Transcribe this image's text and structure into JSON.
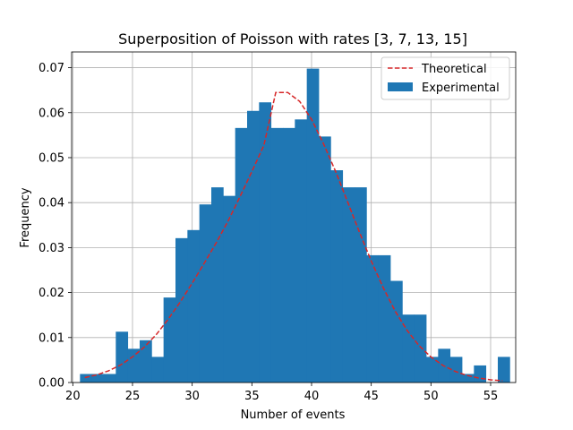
{
  "chart_data": {
    "type": "bar",
    "title": "Superposition of Poisson with rates [3, 7, 13, 15]",
    "xlabel": "Number of events",
    "ylabel": "Frequency",
    "xlim": [
      19.9,
      57.1
    ],
    "ylim": [
      0,
      0.0735
    ],
    "xticks": [
      20,
      25,
      30,
      35,
      40,
      45,
      50,
      55
    ],
    "yticks": [
      0.0,
      0.01,
      0.02,
      0.03,
      0.04,
      0.05,
      0.06,
      0.07
    ],
    "ytick_labels": [
      "0.00",
      "0.01",
      "0.02",
      "0.03",
      "0.04",
      "0.05",
      "0.06",
      "0.07"
    ],
    "grid": true,
    "legend_position": "top-right",
    "bar_color": "#1f77b4",
    "line_color": "#d62728",
    "series": [
      {
        "name": "Experimental",
        "kind": "histogram",
        "bin_start": 20.6,
        "bin_width": 1.0,
        "values": [
          0.0019,
          0.0019,
          0.0019,
          0.0113,
          0.0075,
          0.0094,
          0.0057,
          0.0189,
          0.0321,
          0.0339,
          0.0396,
          0.0434,
          0.0415,
          0.0566,
          0.0604,
          0.0623,
          0.0566,
          0.0566,
          0.0585,
          0.0698,
          0.0547,
          0.0472,
          0.0434,
          0.0434,
          0.0283,
          0.0283,
          0.0226,
          0.0151,
          0.0151,
          0.0057,
          0.0075,
          0.0057,
          0.0019,
          0.0038,
          0.0,
          0.0057
        ]
      },
      {
        "name": "Theoretical",
        "kind": "line",
        "x": [
          21,
          22,
          23,
          24,
          25,
          26,
          27,
          28,
          29,
          30,
          31,
          32,
          33,
          34,
          35,
          36,
          37,
          38,
          39,
          40,
          41,
          42,
          43,
          44,
          45,
          46,
          47,
          48,
          49,
          50,
          51,
          52,
          53,
          54,
          55,
          56
        ],
        "values": [
          0.0011,
          0.0017,
          0.0026,
          0.0039,
          0.0057,
          0.0079,
          0.0107,
          0.0141,
          0.0179,
          0.0221,
          0.0265,
          0.031,
          0.0359,
          0.0413,
          0.0469,
          0.0527,
          0.0645,
          0.0645,
          0.0625,
          0.0585,
          0.0531,
          0.047,
          0.0403,
          0.0335,
          0.027,
          0.0211,
          0.0159,
          0.0116,
          0.0082,
          0.0057,
          0.0038,
          0.0025,
          0.0016,
          0.001,
          0.0006,
          0.0004
        ]
      }
    ]
  }
}
